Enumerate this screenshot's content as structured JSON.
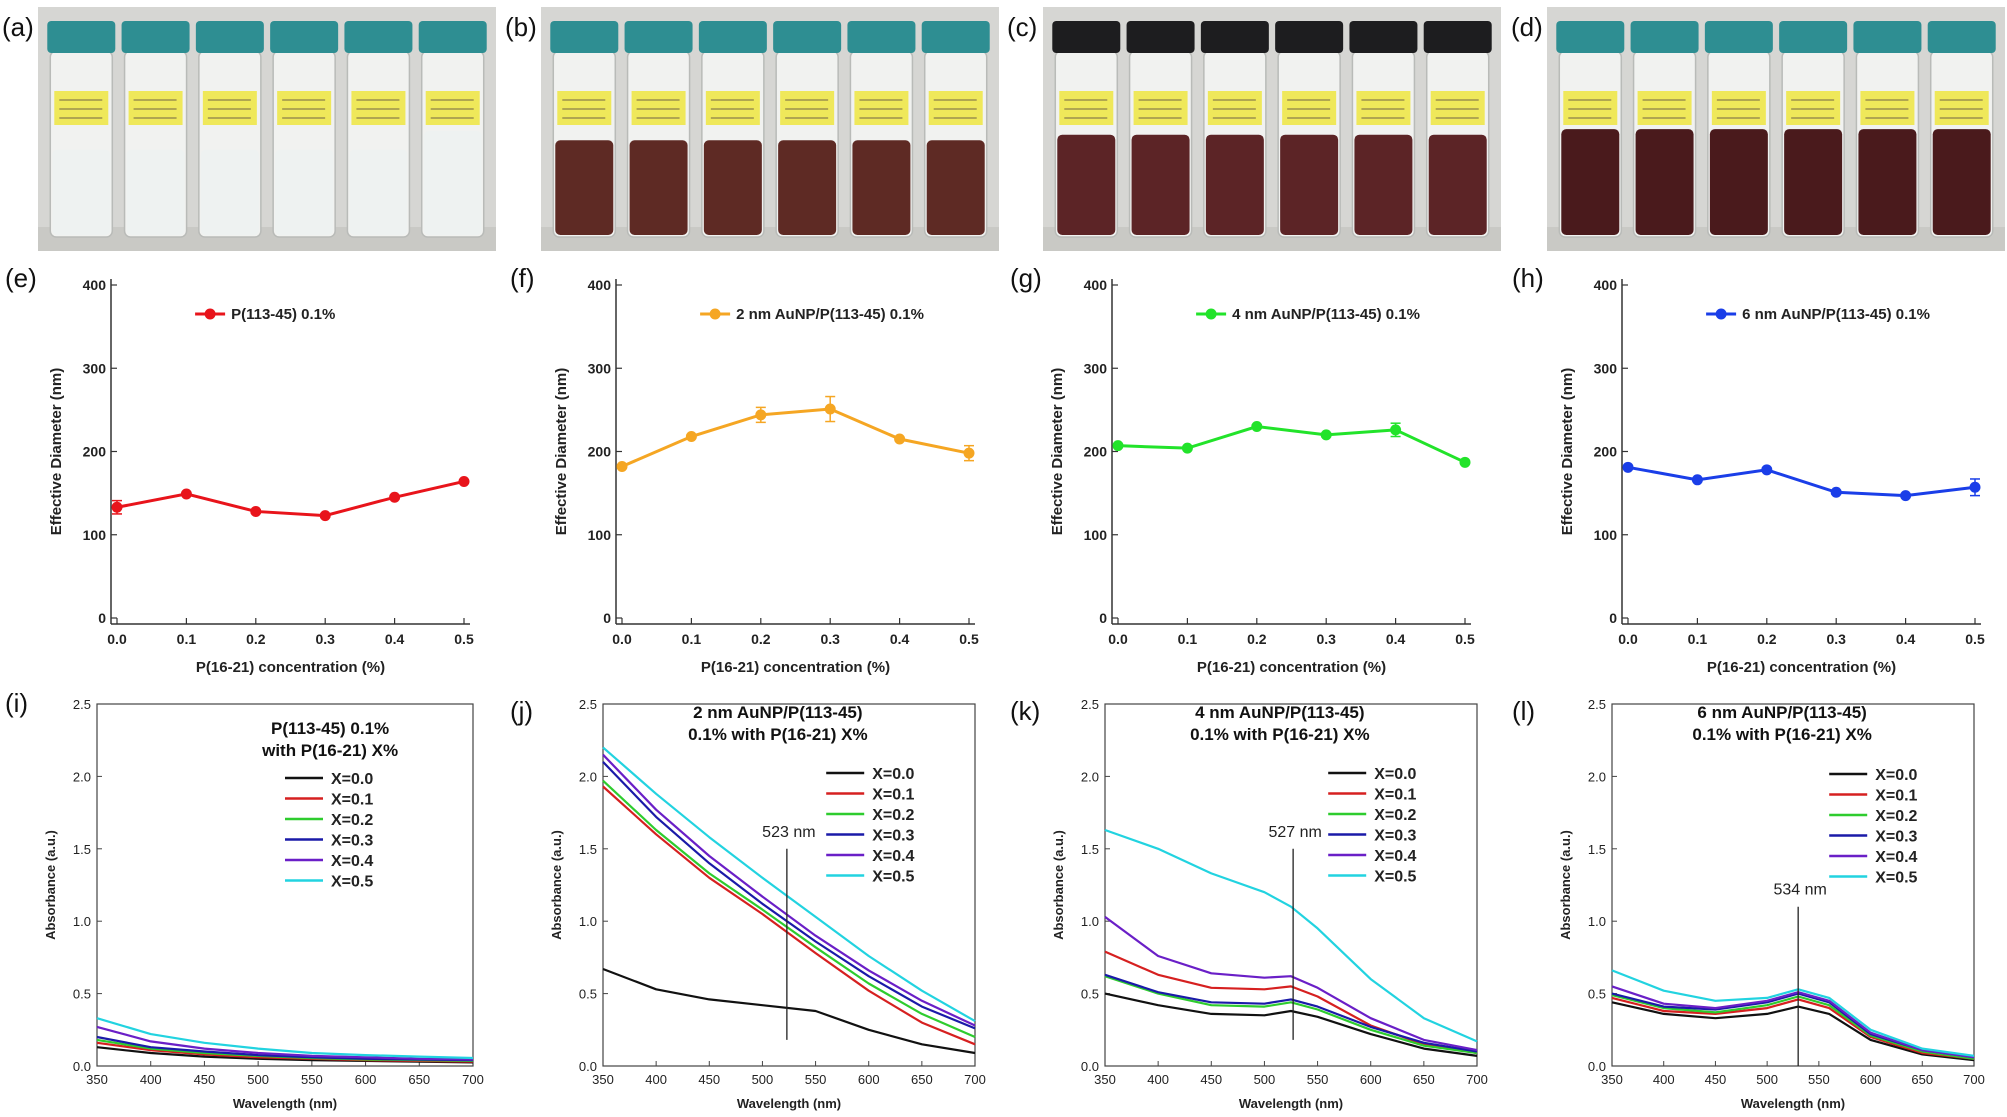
{
  "panels": {
    "photos": [
      {
        "label": "(a)",
        "cap": "teal",
        "liquid": "#eef1f1",
        "level": 0.47
      },
      {
        "label": "(b)",
        "cap": "teal",
        "liquid": "#5e2a24",
        "level": 0.52
      },
      {
        "label": "(c)",
        "cap": "black",
        "liquid": "#5c2426",
        "level": 0.55
      },
      {
        "label": "(d)",
        "cap": "teal",
        "liquid": "#4a1a1c",
        "level": 0.58
      }
    ]
  },
  "chart_data": [
    {
      "panel": "(e)",
      "type": "line",
      "xlabel": "P(16-21) concentration (%)",
      "ylabel": "Effective Diameter (nm)",
      "xlim": [
        0,
        0.5
      ],
      "ylim": [
        0,
        400
      ],
      "x": [
        0.0,
        0.1,
        0.2,
        0.3,
        0.4,
        0.5
      ],
      "x_ticks": [
        "0.0",
        "0.1",
        "0.2",
        "0.3",
        "0.4",
        "0.5"
      ],
      "y_ticks": [
        "0",
        "100",
        "200",
        "300",
        "400"
      ],
      "series": [
        {
          "name": "P(113-45) 0.1%",
          "color": "#e8141b",
          "values": [
            133,
            149,
            128,
            123,
            145,
            164
          ],
          "errors": [
            8,
            2,
            2,
            2,
            2,
            2
          ]
        }
      ]
    },
    {
      "panel": "(f)",
      "type": "line",
      "xlabel": "P(16-21) concentration (%)",
      "ylabel": "Effective Diameter (nm)",
      "xlim": [
        0,
        0.5
      ],
      "ylim": [
        0,
        400
      ],
      "x": [
        0.0,
        0.1,
        0.2,
        0.3,
        0.4,
        0.5
      ],
      "x_ticks": [
        "0.0",
        "0.1",
        "0.2",
        "0.3",
        "0.4",
        "0.5"
      ],
      "y_ticks": [
        "0",
        "100",
        "200",
        "300",
        "400"
      ],
      "series": [
        {
          "name": "2 nm AuNP/P(113-45) 0.1%",
          "color": "#f5a623",
          "values": [
            182,
            218,
            244,
            251,
            215,
            198
          ],
          "errors": [
            2,
            2,
            9,
            15,
            2,
            9
          ]
        }
      ]
    },
    {
      "panel": "(g)",
      "type": "line",
      "xlabel": "P(16-21) concentration (%)",
      "ylabel": "Effective Diameter (nm)",
      "xlim": [
        0,
        0.5
      ],
      "ylim": [
        0,
        400
      ],
      "x": [
        0.0,
        0.1,
        0.2,
        0.3,
        0.4,
        0.5
      ],
      "x_ticks": [
        "0.0",
        "0.1",
        "0.2",
        "0.3",
        "0.4",
        "0.5"
      ],
      "y_ticks": [
        "0",
        "100",
        "200",
        "300",
        "400"
      ],
      "series": [
        {
          "name": "4 nm AuNP/P(113-45) 0.1%",
          "color": "#22e32a",
          "values": [
            207,
            204,
            230,
            220,
            226,
            187
          ],
          "errors": [
            2,
            2,
            2,
            2,
            8,
            2
          ]
        }
      ]
    },
    {
      "panel": "(h)",
      "type": "line",
      "xlabel": "P(16-21) concentration (%)",
      "ylabel": "Effective Diameter (nm)",
      "xlim": [
        0,
        0.5
      ],
      "ylim": [
        0,
        400
      ],
      "x": [
        0.0,
        0.1,
        0.2,
        0.3,
        0.4,
        0.5
      ],
      "x_ticks": [
        "0.0",
        "0.1",
        "0.2",
        "0.3",
        "0.4",
        "0.5"
      ],
      "y_ticks": [
        "0",
        "100",
        "200",
        "300",
        "400"
      ],
      "series": [
        {
          "name": "6 nm AuNP/P(113-45) 0.1%",
          "color": "#1a3ee8",
          "values": [
            181,
            166,
            178,
            151,
            147,
            157
          ],
          "errors": [
            2,
            2,
            2,
            2,
            2,
            10
          ]
        }
      ]
    },
    {
      "panel": "(i)",
      "type": "line",
      "title": [
        "P(113-45) 0.1%",
        "with P(16-21) X%"
      ],
      "xlabel": "Wavelength (nm)",
      "ylabel": "Absorbance (a.u.)",
      "xlim": [
        350,
        700
      ],
      "ylim": [
        0,
        2.5
      ],
      "x_ticks": [
        "350",
        "400",
        "450",
        "500",
        "550",
        "600",
        "650",
        "700"
      ],
      "y_ticks": [
        "0.0",
        "0.5",
        "1.0",
        "1.5",
        "2.0",
        "2.5"
      ],
      "x": [
        350,
        400,
        450,
        500,
        550,
        600,
        650,
        700
      ],
      "series": [
        {
          "name": "X=0.0",
          "color": "#111111",
          "values": [
            0.13,
            0.09,
            0.065,
            0.05,
            0.04,
            0.035,
            0.03,
            0.025
          ]
        },
        {
          "name": "X=0.1",
          "color": "#d62020",
          "values": [
            0.16,
            0.11,
            0.08,
            0.06,
            0.05,
            0.04,
            0.035,
            0.03
          ]
        },
        {
          "name": "X=0.2",
          "color": "#2ecc2e",
          "values": [
            0.18,
            0.12,
            0.09,
            0.07,
            0.055,
            0.045,
            0.04,
            0.035
          ]
        },
        {
          "name": "X=0.3",
          "color": "#1a1aa8",
          "values": [
            0.2,
            0.13,
            0.1,
            0.075,
            0.06,
            0.05,
            0.045,
            0.04
          ]
        },
        {
          "name": "X=0.4",
          "color": "#6a1fc7",
          "values": [
            0.27,
            0.17,
            0.12,
            0.09,
            0.07,
            0.06,
            0.05,
            0.045
          ]
        },
        {
          "name": "X=0.5",
          "color": "#22d3e0",
          "values": [
            0.33,
            0.22,
            0.16,
            0.12,
            0.09,
            0.075,
            0.065,
            0.055
          ]
        }
      ]
    },
    {
      "panel": "(j)",
      "type": "line",
      "title": [
        "2 nm AuNP/P(113-45)",
        "0.1% with P(16-21) X%"
      ],
      "annotation": {
        "text": "523 nm",
        "x": 523
      },
      "xlabel": "Wavelength (nm)",
      "ylabel": "Absorbance (a.u.)",
      "xlim": [
        350,
        700
      ],
      "ylim": [
        0,
        2.5
      ],
      "x_ticks": [
        "350",
        "400",
        "450",
        "500",
        "550",
        "600",
        "650",
        "700"
      ],
      "y_ticks": [
        "0.0",
        "0.5",
        "1.0",
        "1.5",
        "2.0",
        "2.5"
      ],
      "x": [
        350,
        400,
        450,
        500,
        550,
        600,
        650,
        700
      ],
      "series": [
        {
          "name": "X=0.0",
          "color": "#111111",
          "values": [
            0.67,
            0.53,
            0.46,
            0.42,
            0.38,
            0.25,
            0.15,
            0.09
          ]
        },
        {
          "name": "X=0.1",
          "color": "#d62020",
          "values": [
            1.93,
            1.6,
            1.3,
            1.05,
            0.78,
            0.52,
            0.3,
            0.15
          ]
        },
        {
          "name": "X=0.2",
          "color": "#2ecc2e",
          "values": [
            1.97,
            1.63,
            1.33,
            1.08,
            0.82,
            0.57,
            0.36,
            0.2
          ]
        },
        {
          "name": "X=0.3",
          "color": "#1a1aa8",
          "values": [
            2.1,
            1.72,
            1.4,
            1.12,
            0.86,
            0.62,
            0.41,
            0.26
          ]
        },
        {
          "name": "X=0.4",
          "color": "#6a1fc7",
          "values": [
            2.15,
            1.77,
            1.45,
            1.17,
            0.9,
            0.66,
            0.45,
            0.28
          ]
        },
        {
          "name": "X=0.5",
          "color": "#22d3e0",
          "values": [
            2.2,
            1.88,
            1.58,
            1.3,
            1.03,
            0.76,
            0.52,
            0.31
          ]
        }
      ]
    },
    {
      "panel": "(k)",
      "type": "line",
      "title": [
        "4 nm AuNP/P(113-45)",
        "0.1% with P(16-21) X%"
      ],
      "annotation": {
        "text": "527 nm",
        "x": 527
      },
      "xlabel": "Wavelength (nm)",
      "ylabel": "Absorbance (a.u.)",
      "xlim": [
        350,
        700
      ],
      "ylim": [
        0,
        2.5
      ],
      "x_ticks": [
        "350",
        "400",
        "450",
        "500",
        "550",
        "600",
        "650",
        "700"
      ],
      "y_ticks": [
        "0.0",
        "0.5",
        "1.0",
        "1.5",
        "2.0",
        "2.5"
      ],
      "x": [
        350,
        400,
        450,
        500,
        525,
        550,
        600,
        650,
        700
      ],
      "series": [
        {
          "name": "X=0.0",
          "color": "#111111",
          "values": [
            0.5,
            0.42,
            0.36,
            0.35,
            0.38,
            0.34,
            0.22,
            0.12,
            0.07
          ]
        },
        {
          "name": "X=0.1",
          "color": "#d62020",
          "values": [
            0.79,
            0.63,
            0.54,
            0.53,
            0.55,
            0.48,
            0.28,
            0.15,
            0.09
          ]
        },
        {
          "name": "X=0.2",
          "color": "#2ecc2e",
          "values": [
            0.62,
            0.5,
            0.42,
            0.41,
            0.44,
            0.39,
            0.25,
            0.14,
            0.09
          ]
        },
        {
          "name": "X=0.3",
          "color": "#1a1aa8",
          "values": [
            0.63,
            0.51,
            0.44,
            0.43,
            0.46,
            0.41,
            0.27,
            0.16,
            0.1
          ]
        },
        {
          "name": "X=0.4",
          "color": "#6a1fc7",
          "values": [
            1.03,
            0.76,
            0.64,
            0.61,
            0.62,
            0.54,
            0.33,
            0.18,
            0.11
          ]
        },
        {
          "name": "X=0.5",
          "color": "#22d3e0",
          "values": [
            1.63,
            1.5,
            1.33,
            1.2,
            1.1,
            0.95,
            0.6,
            0.33,
            0.17
          ]
        }
      ]
    },
    {
      "panel": "(l)",
      "type": "line",
      "title": [
        "6 nm AuNP/P(113-45)",
        "0.1% with P(16-21) X%"
      ],
      "annotation": {
        "text": "534 nm",
        "x": 530
      },
      "xlabel": "Wavelength (nm)",
      "ylabel": "Absorbance (a.u.)",
      "xlim": [
        350,
        700
      ],
      "ylim": [
        0,
        2.5
      ],
      "x_ticks": [
        "350",
        "400",
        "450",
        "500",
        "550",
        "600",
        "650",
        "700"
      ],
      "y_ticks": [
        "0.0",
        "0.5",
        "1.0",
        "1.5",
        "2.0",
        "2.5"
      ],
      "x": [
        350,
        400,
        450,
        500,
        530,
        560,
        600,
        650,
        700
      ],
      "series": [
        {
          "name": "X=0.0",
          "color": "#111111",
          "values": [
            0.44,
            0.36,
            0.33,
            0.36,
            0.41,
            0.36,
            0.18,
            0.08,
            0.04
          ]
        },
        {
          "name": "X=0.1",
          "color": "#d62020",
          "values": [
            0.47,
            0.38,
            0.36,
            0.4,
            0.46,
            0.4,
            0.2,
            0.09,
            0.05
          ]
        },
        {
          "name": "X=0.2",
          "color": "#2ecc2e",
          "values": [
            0.49,
            0.4,
            0.37,
            0.42,
            0.48,
            0.42,
            0.21,
            0.1,
            0.05
          ]
        },
        {
          "name": "X=0.3",
          "color": "#1a1aa8",
          "values": [
            0.5,
            0.41,
            0.39,
            0.44,
            0.5,
            0.44,
            0.22,
            0.11,
            0.06
          ]
        },
        {
          "name": "X=0.4",
          "color": "#6a1fc7",
          "values": [
            0.55,
            0.43,
            0.4,
            0.45,
            0.51,
            0.45,
            0.23,
            0.11,
            0.06
          ]
        },
        {
          "name": "X=0.5",
          "color": "#22d3e0",
          "values": [
            0.66,
            0.52,
            0.45,
            0.47,
            0.53,
            0.47,
            0.25,
            0.12,
            0.07
          ]
        }
      ]
    }
  ]
}
